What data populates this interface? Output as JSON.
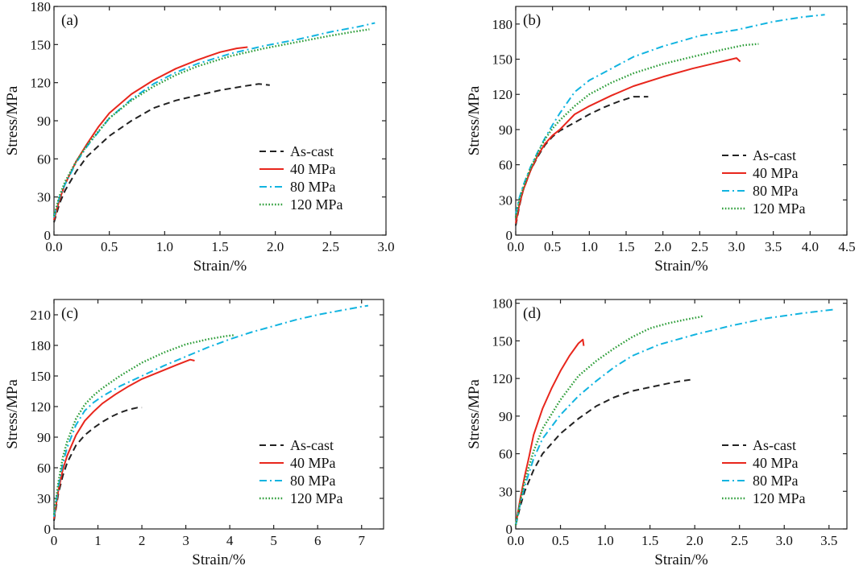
{
  "chart_data": [
    {
      "type": "line",
      "panel_label": "(a)",
      "xlabel": "Strain/%",
      "ylabel": "Stress/MPa",
      "xlim": [
        0,
        3.0
      ],
      "ylim": [
        0,
        180
      ],
      "xticks": [
        0.0,
        0.5,
        1.0,
        1.5,
        2.0,
        2.5,
        3.0
      ],
      "xtick_labels": [
        "0.0",
        "0.5",
        "1.0",
        "1.5",
        "2.0",
        "2.5",
        "3.0"
      ],
      "yticks": [
        0,
        30,
        60,
        90,
        120,
        150,
        180
      ],
      "ytick_labels": [
        "0",
        "30",
        "60",
        "90",
        "120",
        "150",
        "180"
      ],
      "legend_position": "lower-right",
      "series": [
        {
          "name": "As-cast",
          "style": "dashed",
          "color": "#222222",
          "x": [
            0,
            0.05,
            0.1,
            0.2,
            0.3,
            0.5,
            0.7,
            0.9,
            1.1,
            1.3,
            1.5,
            1.7,
            1.85,
            1.95
          ],
          "y": [
            10,
            25,
            35,
            50,
            62,
            78,
            90,
            100,
            106,
            110,
            114,
            117,
            119,
            118
          ]
        },
        {
          "name": "40 MPa",
          "style": "solid",
          "color": "#e8261c",
          "x": [
            0,
            0.05,
            0.1,
            0.2,
            0.3,
            0.4,
            0.5,
            0.7,
            0.9,
            1.1,
            1.3,
            1.5,
            1.65,
            1.75
          ],
          "y": [
            12,
            28,
            40,
            58,
            72,
            85,
            96,
            111,
            122,
            131,
            138,
            144,
            147,
            148
          ]
        },
        {
          "name": "80 MPa",
          "style": "dashdot",
          "color": "#12b4e0",
          "x": [
            0,
            0.05,
            0.1,
            0.2,
            0.3,
            0.5,
            0.7,
            0.9,
            1.1,
            1.3,
            1.6,
            1.9,
            2.2,
            2.5,
            2.75,
            2.9
          ],
          "y": [
            14,
            30,
            40,
            57,
            70,
            92,
            107,
            119,
            128,
            135,
            143,
            149,
            154,
            160,
            164,
            167
          ]
        },
        {
          "name": "120 MPa",
          "style": "dotted",
          "color": "#2e9e3a",
          "x": [
            0,
            0.05,
            0.1,
            0.2,
            0.3,
            0.5,
            0.7,
            0.9,
            1.1,
            1.3,
            1.6,
            1.9,
            2.2,
            2.5,
            2.7,
            2.85
          ],
          "y": [
            15,
            31,
            42,
            58,
            71,
            92,
            106,
            117,
            126,
            133,
            141,
            147,
            152,
            157,
            160,
            162
          ]
        }
      ]
    },
    {
      "type": "line",
      "panel_label": "(b)",
      "xlabel": "Strain/%",
      "ylabel": "Stress/MPa",
      "xlim": [
        0,
        4.5
      ],
      "ylim": [
        0,
        195
      ],
      "xticks": [
        0.0,
        0.5,
        1.0,
        1.5,
        2.0,
        2.5,
        3.0,
        3.5,
        4.0,
        4.5
      ],
      "xtick_labels": [
        "0.0",
        "0.5",
        "1.0",
        "1.5",
        "2.0",
        "2.5",
        "3.0",
        "3.5",
        "4.0",
        "4.5"
      ],
      "yticks": [
        0,
        30,
        60,
        90,
        120,
        150,
        180
      ],
      "ytick_labels": [
        "0",
        "30",
        "60",
        "90",
        "120",
        "150",
        "180"
      ],
      "legend_position": "lower-right",
      "series": [
        {
          "name": "As-cast",
          "style": "dashed",
          "color": "#222222",
          "x": [
            0,
            0.05,
            0.1,
            0.2,
            0.3,
            0.4,
            0.5,
            0.6,
            0.8,
            1.0,
            1.2,
            1.4,
            1.6,
            1.7,
            1.8
          ],
          "y": [
            8,
            25,
            38,
            55,
            67,
            77,
            84,
            89,
            96,
            103,
            109,
            114,
            118,
            118,
            118
          ]
        },
        {
          "name": "40 MPa",
          "style": "solid",
          "color": "#e8261c",
          "x": [
            0,
            0.05,
            0.1,
            0.2,
            0.3,
            0.4,
            0.5,
            0.6,
            0.8,
            1.0,
            1.3,
            1.6,
            2.0,
            2.4,
            2.8,
            3.0,
            3.05
          ],
          "y": [
            10,
            26,
            38,
            55,
            68,
            78,
            85,
            90,
            103,
            110,
            119,
            127,
            135,
            142,
            148,
            151,
            148
          ]
        },
        {
          "name": "80 MPa",
          "style": "dashdot",
          "color": "#12b4e0",
          "x": [
            0,
            0.05,
            0.1,
            0.2,
            0.3,
            0.4,
            0.5,
            0.6,
            0.8,
            1.0,
            1.3,
            1.6,
            2.0,
            2.5,
            3.0,
            3.5,
            3.9,
            4.2
          ],
          "y": [
            18,
            32,
            42,
            58,
            71,
            83,
            94,
            104,
            122,
            132,
            142,
            152,
            161,
            170,
            175,
            182,
            186,
            188
          ]
        },
        {
          "name": "120 MPa",
          "style": "dotted",
          "color": "#2e9e3a",
          "x": [
            0,
            0.05,
            0.1,
            0.2,
            0.3,
            0.4,
            0.5,
            0.6,
            0.8,
            1.0,
            1.3,
            1.6,
            2.0,
            2.4,
            2.8,
            3.1,
            3.3
          ],
          "y": [
            15,
            30,
            40,
            57,
            70,
            82,
            91,
            98,
            110,
            120,
            130,
            138,
            146,
            152,
            158,
            162,
            163
          ]
        }
      ]
    },
    {
      "type": "line",
      "panel_label": "(c)",
      "xlabel": "Strain/%",
      "ylabel": "Stress/MPa",
      "xlim": [
        0,
        7.5
      ],
      "ylim": [
        0,
        225
      ],
      "xticks": [
        0,
        1,
        2,
        3,
        4,
        5,
        6,
        7
      ],
      "xtick_labels": [
        "0",
        "1",
        "2",
        "3",
        "4",
        "5",
        "6",
        "7"
      ],
      "yticks": [
        0,
        30,
        60,
        90,
        120,
        150,
        180,
        210
      ],
      "ytick_labels": [
        "0",
        "30",
        "60",
        "90",
        "120",
        "150",
        "180",
        "210"
      ],
      "legend_position": "lower-right",
      "series": [
        {
          "name": "As-cast",
          "style": "dashed",
          "color": "#222222",
          "x": [
            0,
            0.1,
            0.2,
            0.3,
            0.5,
            0.7,
            0.9,
            1.1,
            1.3,
            1.5,
            1.7,
            1.9,
            2.0
          ],
          "y": [
            8,
            35,
            52,
            65,
            82,
            92,
            99,
            105,
            110,
            114,
            117,
            119,
            119
          ]
        },
        {
          "name": "40 MPa",
          "style": "solid",
          "color": "#e8261c",
          "x": [
            0,
            0.1,
            0.2,
            0.3,
            0.5,
            0.7,
            0.9,
            1.1,
            1.4,
            1.7,
            2.0,
            2.4,
            2.8,
            3.1,
            3.2
          ],
          "y": [
            10,
            38,
            58,
            72,
            92,
            106,
            115,
            123,
            132,
            140,
            147,
            154,
            161,
            166,
            165
          ]
        },
        {
          "name": "80 MPa",
          "style": "dashdot",
          "color": "#12b4e0",
          "x": [
            0,
            0.1,
            0.2,
            0.3,
            0.5,
            0.7,
            0.9,
            1.1,
            1.5,
            2.0,
            2.5,
            3.0,
            3.5,
            4.0,
            4.5,
            5.0,
            5.5,
            6.0,
            6.5,
            7.0,
            7.15
          ],
          "y": [
            12,
            42,
            64,
            80,
            102,
            116,
            124,
            130,
            140,
            150,
            160,
            169,
            178,
            186,
            193,
            199,
            205,
            210,
            214,
            218,
            219
          ]
        },
        {
          "name": "120 MPa",
          "style": "dotted",
          "color": "#2e9e3a",
          "x": [
            0,
            0.1,
            0.2,
            0.3,
            0.5,
            0.7,
            0.9,
            1.1,
            1.5,
            2.0,
            2.5,
            3.0,
            3.5,
            3.9,
            4.1
          ],
          "y": [
            14,
            46,
            70,
            86,
            108,
            122,
            131,
            138,
            150,
            163,
            173,
            181,
            186,
            189,
            190
          ]
        }
      ]
    },
    {
      "type": "line",
      "panel_label": "(d)",
      "xlabel": "Strain/%",
      "ylabel": "Stress/MPa",
      "xlim": [
        0,
        3.7
      ],
      "ylim": [
        0,
        183
      ],
      "xticks": [
        0.0,
        0.5,
        1.0,
        1.5,
        2.0,
        2.5,
        3.0,
        3.5
      ],
      "xtick_labels": [
        "0.0",
        "0.5",
        "1.0",
        "1.5",
        "2.0",
        "2.5",
        "3.0",
        "3.5"
      ],
      "yticks": [
        0,
        30,
        60,
        90,
        120,
        150,
        180
      ],
      "ytick_labels": [
        "0",
        "30",
        "60",
        "90",
        "120",
        "150",
        "180"
      ],
      "legend_position": "lower-right",
      "series": [
        {
          "name": "As-cast",
          "style": "dashed",
          "color": "#222222",
          "x": [
            0,
            0.05,
            0.1,
            0.2,
            0.3,
            0.5,
            0.7,
            0.9,
            1.1,
            1.3,
            1.5,
            1.7,
            1.85,
            1.95
          ],
          "y": [
            3,
            18,
            30,
            47,
            60,
            76,
            88,
            98,
            105,
            110,
            113,
            116,
            118,
            119
          ]
        },
        {
          "name": "40 MPa",
          "style": "solid",
          "color": "#e8261c",
          "x": [
            0,
            0.05,
            0.1,
            0.15,
            0.2,
            0.3,
            0.4,
            0.5,
            0.6,
            0.7,
            0.75,
            0.76
          ],
          "y": [
            3,
            24,
            42,
            58,
            75,
            96,
            112,
            126,
            138,
            148,
            151,
            146
          ]
        },
        {
          "name": "80 MPa",
          "style": "dashdot",
          "color": "#12b4e0",
          "x": [
            0,
            0.05,
            0.1,
            0.2,
            0.3,
            0.5,
            0.7,
            0.9,
            1.1,
            1.3,
            1.6,
            2.0,
            2.4,
            2.8,
            3.2,
            3.55
          ],
          "y": [
            3,
            20,
            34,
            56,
            72,
            91,
            106,
            118,
            129,
            138,
            147,
            155,
            162,
            168,
            172,
            175
          ]
        },
        {
          "name": "120 MPa",
          "style": "dotted",
          "color": "#2e9e3a",
          "x": [
            0,
            0.05,
            0.1,
            0.2,
            0.3,
            0.5,
            0.7,
            0.9,
            1.1,
            1.3,
            1.5,
            1.7,
            1.9,
            2.05,
            2.1
          ],
          "y": [
            3,
            22,
            38,
            62,
            80,
            103,
            122,
            134,
            144,
            153,
            160,
            164,
            167,
            169,
            170
          ]
        }
      ]
    }
  ]
}
